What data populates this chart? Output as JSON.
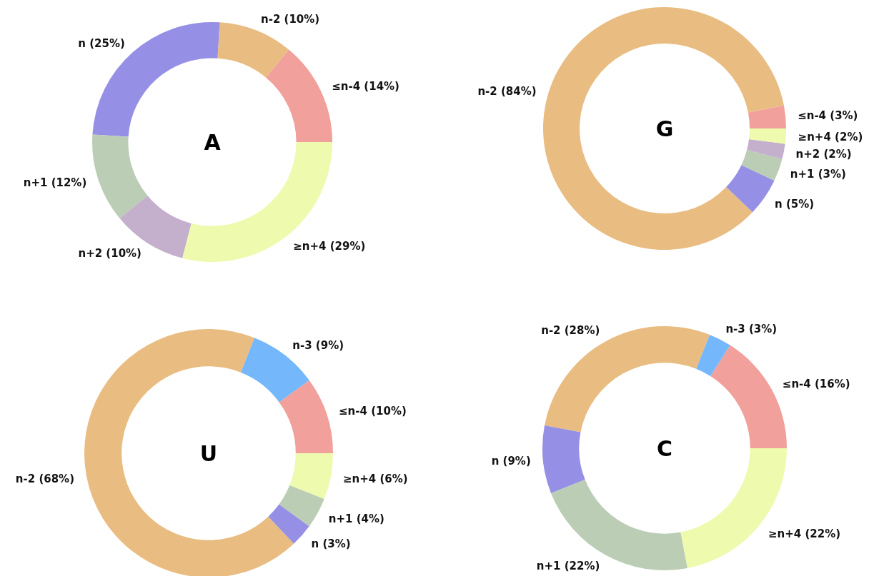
{
  "chart_data": [
    {
      "type": "donut",
      "title": "A",
      "categories": [
        "≤n-4 (14%)",
        "n-2 (10%)",
        "n (25%)",
        "n+1 (12%)",
        "n+2 (10%)",
        "≥n+4 (29%)"
      ],
      "values": [
        14,
        10,
        25,
        12,
        10,
        29
      ],
      "colors": [
        "#f1a09b",
        "#e9bc81",
        "#9590e5",
        "#bbcdb5",
        "#c4afcd",
        "#eefaae"
      ]
    },
    {
      "type": "donut",
      "title": "G",
      "categories": [
        "≤n-4 (3%)",
        "n-2 (84%)",
        "n (5%)",
        "n+1 (3%)",
        "n+2 (2%)",
        "≥n+4 (2%)"
      ],
      "values": [
        3,
        84,
        5,
        3,
        2,
        2
      ],
      "colors": [
        "#f1a09b",
        "#e9bc81",
        "#9590e5",
        "#bbcdb5",
        "#c4afcd",
        "#eefaae"
      ]
    },
    {
      "type": "donut",
      "title": "U",
      "categories": [
        "≤n-4 (10%)",
        "n-3 (9%)",
        "n-2 (68%)",
        "n (3%)",
        "n+1 (4%)",
        "≥n+4 (6%)"
      ],
      "values": [
        10,
        9,
        68,
        3,
        4,
        6
      ],
      "colors": [
        "#f1a09b",
        "#74b8fb",
        "#e9bc81",
        "#9590e5",
        "#bbcdb5",
        "#eefaae"
      ]
    },
    {
      "type": "donut",
      "title": "C",
      "categories": [
        "≤n-4 (16%)",
        "n-3 (3%)",
        "n-2 (28%)",
        "n (9%)",
        "n+1 (22%)",
        "≥n+4 (22%)"
      ],
      "values": [
        16,
        3,
        28,
        9,
        22,
        22
      ],
      "colors": [
        "#f1a09b",
        "#74b8fb",
        "#e9bc81",
        "#9590e5",
        "#bbcdb5",
        "#eefaae"
      ]
    }
  ]
}
